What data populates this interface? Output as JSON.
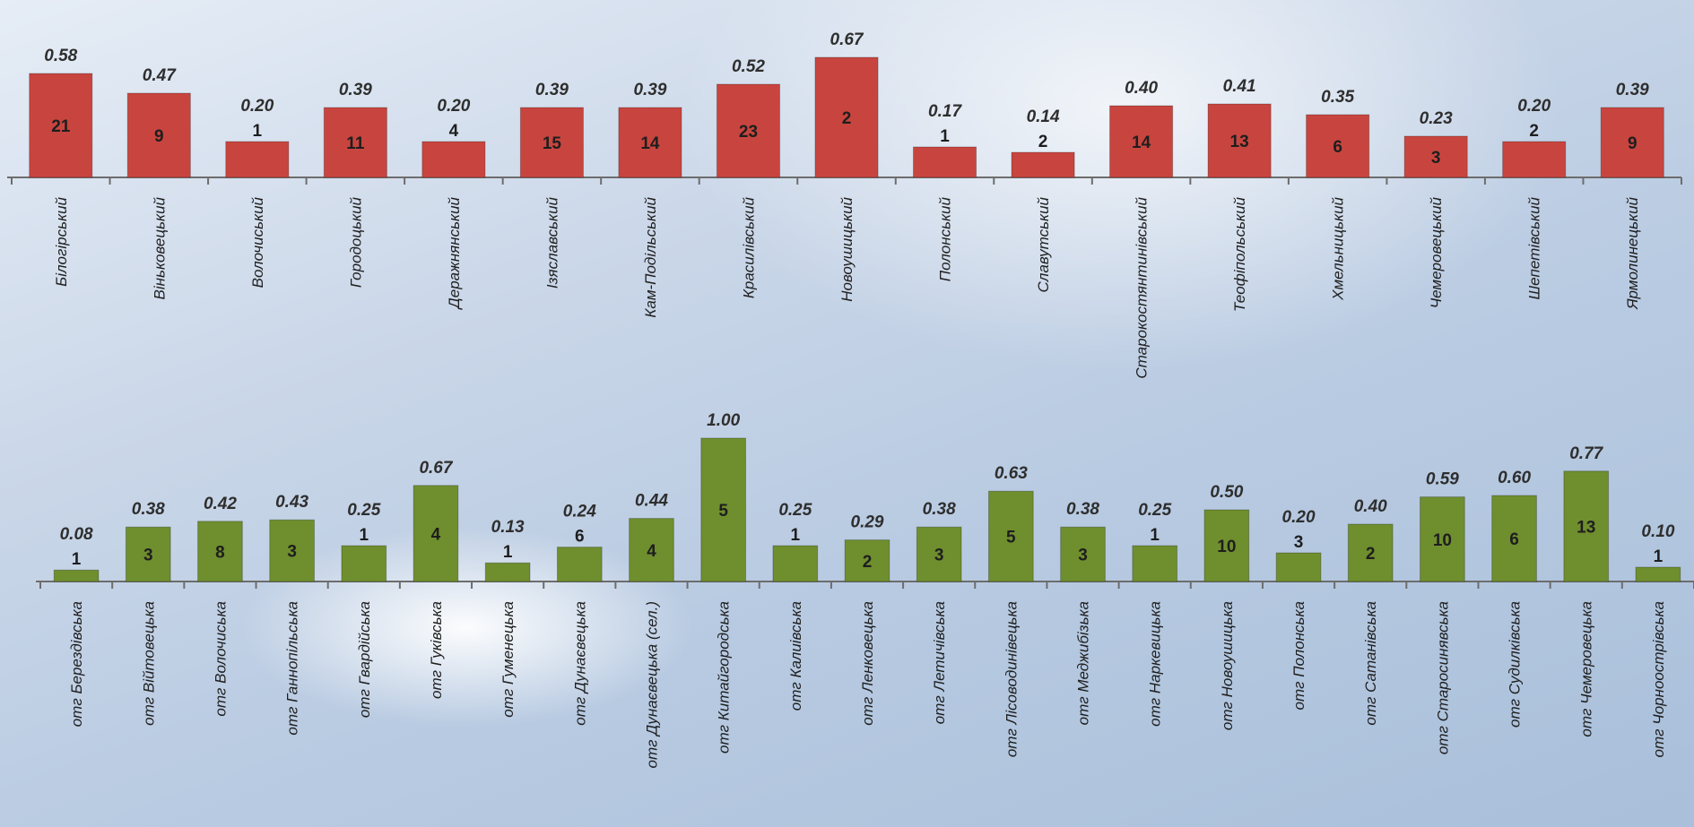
{
  "chart_data": [
    {
      "type": "bar",
      "color": "#c8453f",
      "categories": [
        "Білогірський",
        "Віньковецький",
        "Волочиський",
        "Городоцький",
        "Деражнянський",
        "Ізяславський",
        "Кам-Подільський",
        "Красилівський",
        "Новоушицький",
        "Полонський",
        "Славутський",
        "Старокостянтинівський",
        "Теофіпольський",
        "Хмельницький",
        "Чемеровецький",
        "Шепетівський",
        "Ярмолинецький"
      ],
      "values": [
        0.58,
        0.47,
        0.2,
        0.39,
        0.2,
        0.39,
        0.39,
        0.52,
        0.67,
        0.17,
        0.14,
        0.4,
        0.41,
        0.35,
        0.23,
        0.2,
        0.39
      ],
      "counts": [
        21,
        9,
        1,
        11,
        4,
        15,
        14,
        23,
        2,
        1,
        2,
        14,
        13,
        6,
        3,
        2,
        9
      ],
      "title": "",
      "xlabel": "",
      "ylabel": "",
      "grid": false,
      "legend": "none"
    },
    {
      "type": "bar",
      "color": "#6f8e2e",
      "categories": [
        "отг Берездівська",
        "отг Війтовецька",
        "отг Волочиська",
        "отг Ганнопільська",
        "отг Гвардійська",
        "отг Гуківська",
        "отг Гуменецька",
        "отг Дунаєвецька",
        "отг Дунаєвецька (сел.)",
        "отг Китайгородська",
        "отг Калиівська",
        "отг Ленковецька",
        "отг Летичівська",
        "отг Лісоводинівецька",
        "отг Меджибізька",
        "отг Наркевицька",
        "отг Новоушицька",
        "отг Полонська",
        "отг Сатанівська",
        "отг Старосинявська",
        "отг Судилківська",
        "отг Чемеровецька",
        "отг Чорноострівська"
      ],
      "values": [
        0.08,
        0.38,
        0.42,
        0.43,
        0.25,
        0.67,
        0.13,
        0.24,
        0.44,
        1.0,
        0.25,
        0.29,
        0.38,
        0.63,
        0.38,
        0.25,
        0.5,
        0.2,
        0.4,
        0.59,
        0.6,
        0.77,
        0.1
      ],
      "counts": [
        1,
        3,
        8,
        3,
        1,
        4,
        1,
        6,
        4,
        5,
        1,
        2,
        3,
        5,
        3,
        1,
        10,
        3,
        2,
        10,
        6,
        13,
        1
      ],
      "title": "",
      "xlabel": "",
      "ylabel": "",
      "grid": false,
      "legend": "none"
    }
  ]
}
